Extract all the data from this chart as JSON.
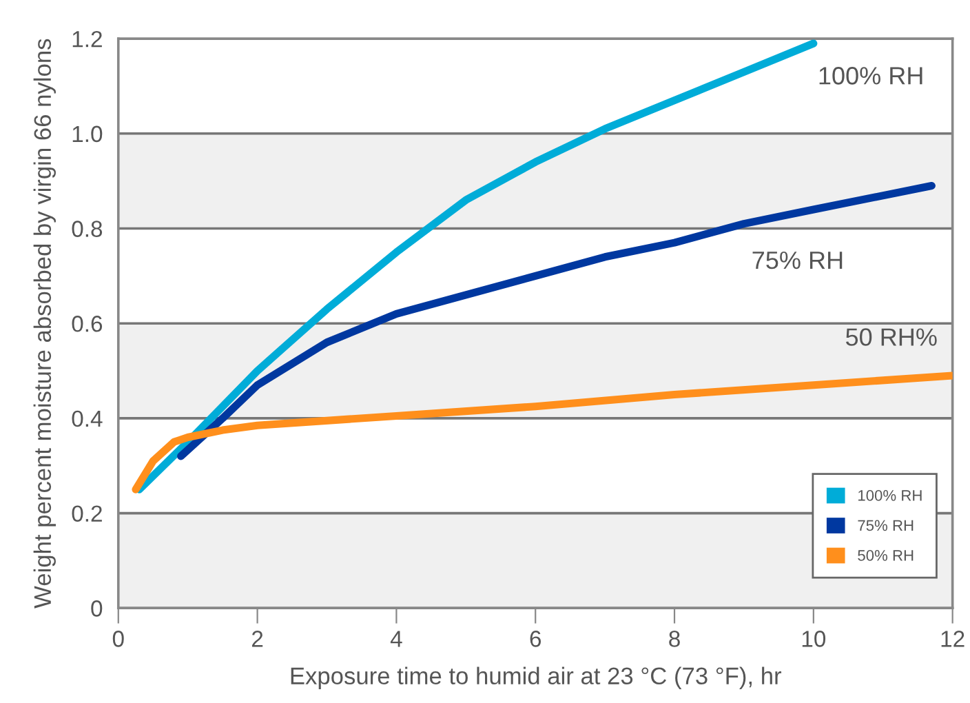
{
  "chart_data": {
    "type": "line",
    "xlabel": "Exposure time to humid air at 23 °C (73 °F), hr",
    "ylabel": "Weight percent moisture absorbed by virgin 66 nylons",
    "series": [
      {
        "name": "100% RH",
        "color": "#00acd8",
        "x": [
          0.3,
          1,
          2,
          3,
          4,
          5,
          6,
          7,
          8,
          9,
          10
        ],
        "values": [
          0.25,
          0.35,
          0.5,
          0.63,
          0.75,
          0.86,
          0.94,
          1.01,
          1.07,
          1.13,
          1.19
        ]
      },
      {
        "name": "75% RH",
        "color": "#0038a0",
        "x": [
          0.9,
          1.5,
          2,
          3,
          4,
          5,
          6,
          7,
          8,
          9,
          10,
          11.7
        ],
        "values": [
          0.32,
          0.4,
          0.47,
          0.56,
          0.62,
          0.66,
          0.7,
          0.74,
          0.77,
          0.81,
          0.84,
          0.89
        ]
      },
      {
        "name": "50% RH",
        "color": "#ff8f1c",
        "x": [
          0.25,
          0.5,
          0.8,
          1,
          1.5,
          2,
          4,
          6,
          8,
          10,
          12
        ],
        "values": [
          0.25,
          0.31,
          0.35,
          0.36,
          0.375,
          0.385,
          0.405,
          0.425,
          0.45,
          0.47,
          0.49
        ]
      }
    ],
    "annotations": [
      "100% RH",
      "75% RH",
      "50 RH%"
    ],
    "bands": [
      {
        "axis": "y",
        "from": 0,
        "to": 0.2,
        "color": "#f0f0f0"
      },
      {
        "axis": "y",
        "from": 0.4,
        "to": 0.6,
        "color": "#f0f0f0"
      },
      {
        "axis": "y",
        "from": 0.8,
        "to": 1.0,
        "color": "#f0f0f0"
      }
    ],
    "xlim": [
      0,
      12
    ],
    "xticks": [
      0,
      2,
      4,
      6,
      8,
      10,
      12
    ],
    "ylim": [
      0,
      1.2
    ],
    "yticks": [
      0,
      0.2,
      0.4,
      0.6,
      0.8,
      {
        "value": 1,
        "label": "1.0"
      },
      1.2
    ],
    "grid": "y",
    "legend": "bottom right",
    "line_style": "solid",
    "marker": "none"
  }
}
